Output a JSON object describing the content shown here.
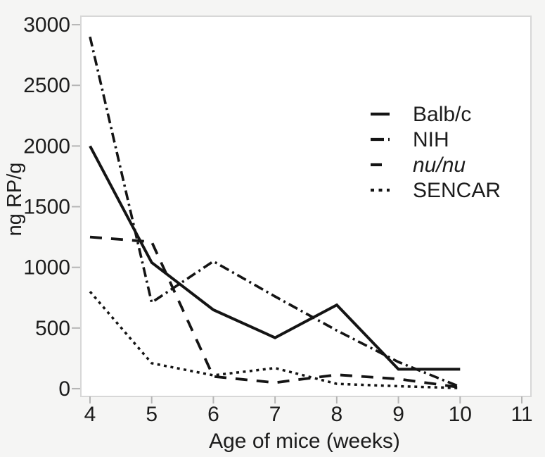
{
  "figure": {
    "background": "#f5f5f4",
    "plot_background": "#ffffff",
    "plot_border_color": "#d7d7d7",
    "tick_mark_color": "#b5b5b5",
    "text_color": "#1c1c1c",
    "line_color": "#141414"
  },
  "chart_data": {
    "type": "line",
    "title": "",
    "xlabel": "Age of mice (weeks)",
    "ylabel": "ng RP/g",
    "x": [
      4,
      5,
      6,
      7,
      8,
      9,
      10
    ],
    "xticks": [
      4,
      5,
      6,
      7,
      8,
      9,
      10,
      11
    ],
    "yticks": [
      0,
      500,
      1000,
      1500,
      2000,
      2500,
      3000
    ],
    "xlim": [
      3.852,
      11.148
    ],
    "ylim": [
      -64,
      3070
    ],
    "grid": false,
    "legend_position": "upper right",
    "series": [
      {
        "name": "Balb/c",
        "style": "solid",
        "italic": false,
        "values": [
          2000,
          1040,
          650,
          420,
          690,
          160,
          160
        ]
      },
      {
        "name": "NIH",
        "style": "dashdot",
        "italic": false,
        "values": [
          2900,
          710,
          1050,
          760,
          480,
          220,
          15
        ]
      },
      {
        "name": "nu/nu",
        "style": "dashed",
        "italic": true,
        "values": [
          1250,
          1210,
          100,
          50,
          115,
          80,
          10
        ]
      },
      {
        "name": "SENCAR",
        "style": "dotted",
        "italic": false,
        "values": [
          800,
          210,
          110,
          170,
          40,
          20,
          5
        ]
      }
    ]
  }
}
